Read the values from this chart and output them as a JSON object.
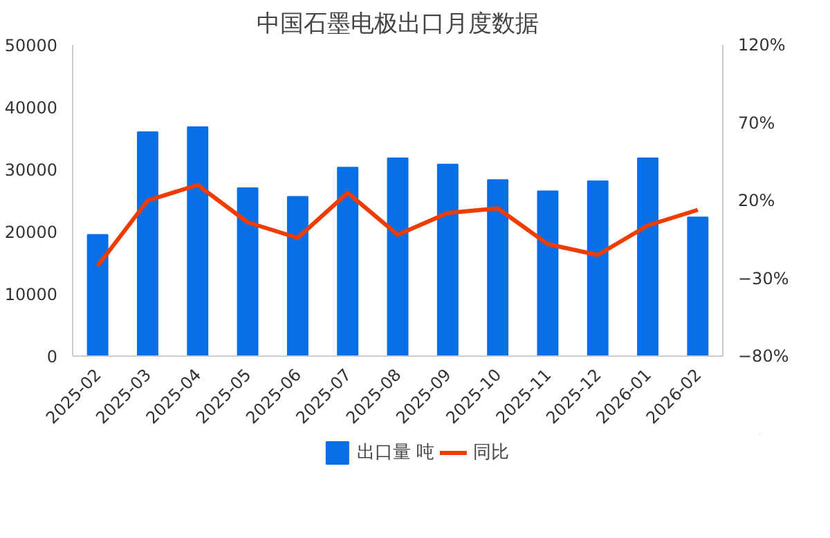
{
  "chart_data": {
    "type": "bar",
    "title": "中国石墨电极出口月度数据",
    "categories": [
      "2025-02",
      "2025-03",
      "2025-04",
      "2025-05",
      "2025-06",
      "2025-07",
      "2025-08",
      "2025-09",
      "2025-10",
      "2025-11",
      "2025-12",
      "2026-01",
      "2026-02"
    ],
    "series": [
      {
        "name": "出口量 吨",
        "color": "#0a6ee6",
        "values": [
          19500,
          36000,
          36800,
          27000,
          25600,
          30300,
          31800,
          30800,
          28300,
          26500,
          28100,
          31800,
          22300
        ]
      },
      {
        "name": "同比",
        "type": "line",
        "axis": "y2",
        "color": "#f03c00",
        "values": [
          -22,
          20,
          30,
          6,
          -4,
          25,
          -2,
          12,
          15,
          -8,
          -15,
          4,
          14
        ]
      }
    ],
    "ylim": [
      0,
      50000
    ],
    "yticks": [
      0,
      10000,
      20000,
      30000,
      40000,
      50000
    ],
    "y2lim": [
      -80,
      120
    ],
    "y2ticks": [
      {
        "value": -80,
        "label": "−80%"
      },
      {
        "value": -30,
        "label": "−30%"
      },
      {
        "value": 20,
        "label": "20%"
      },
      {
        "value": 70,
        "label": "70%"
      },
      {
        "value": 120,
        "label": "120%"
      }
    ],
    "grid": false,
    "legend": "bottom",
    "marker": "none",
    "line_style": "solid"
  }
}
